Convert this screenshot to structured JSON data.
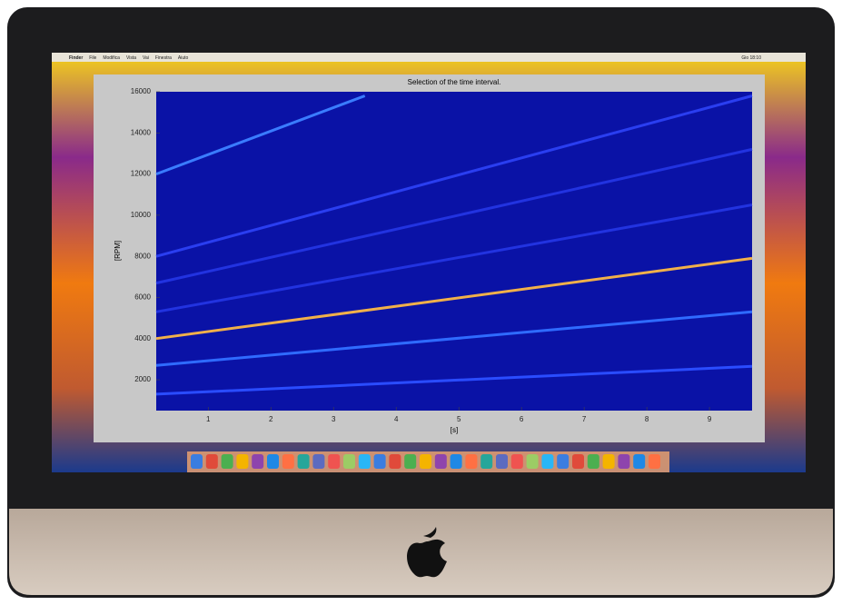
{
  "menu_bar": {
    "items": [
      "Finder",
      "File",
      "Modifica",
      "Vista",
      "Vai",
      "Finestra",
      "Aiuto"
    ],
    "clock": "Gio 18:10"
  },
  "chart_data": {
    "type": "line",
    "title": "Selection of the time interval.",
    "x_label": "[s]",
    "y_label": "[RPM]",
    "xlim": [
      0.17,
      9.68
    ],
    "xticks": [
      1,
      2,
      3,
      4,
      5,
      6,
      7,
      8,
      9
    ],
    "ylim": [
      500,
      16000
    ],
    "yticks": [
      2000,
      4000,
      6000,
      8000,
      10000,
      12000,
      14000,
      16000
    ],
    "background": "#0a12a6",
    "grid": false,
    "series": [
      {
        "color": "#2a4cff",
        "x": [
          0.17,
          9.68
        ],
        "values": [
          1300,
          2650
        ]
      },
      {
        "color": "#2f6bff",
        "x": [
          0.17,
          9.68
        ],
        "values": [
          2700,
          5300
        ]
      },
      {
        "color": "#f0b04a",
        "x": [
          0.17,
          9.68
        ],
        "values": [
          4000,
          7900
        ]
      },
      {
        "color": "#2233e0",
        "x": [
          0.17,
          9.68
        ],
        "values": [
          5300,
          10500
        ]
      },
      {
        "color": "#2233e0",
        "x": [
          0.17,
          9.68
        ],
        "values": [
          6700,
          13200
        ]
      },
      {
        "color": "#2a3ef0",
        "x": [
          0.17,
          9.68
        ],
        "values": [
          8000,
          15800
        ]
      },
      {
        "color": "#3a7cff",
        "x": [
          0.17,
          3.5
        ],
        "values": [
          12000,
          15800
        ]
      }
    ]
  }
}
